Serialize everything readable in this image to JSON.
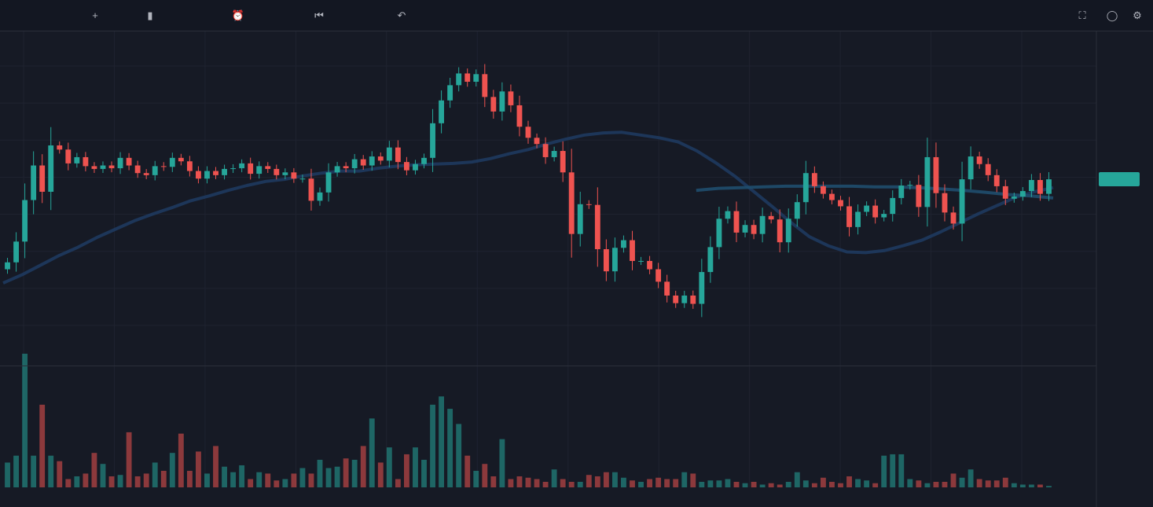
{
  "toolbar": {
    "symbol": "",
    "interval": "",
    "indicators_label": "",
    "alert_label": "",
    "replay_label": "",
    "publish_label": ""
  },
  "legend": {
    "title": "",
    "ma1_label": "",
    "ma1_value": "",
    "ma2_label": "",
    "ma2_value": "",
    "volume_label": "",
    "volume_value": ""
  },
  "colors": {
    "up": "#26a69a",
    "down": "#ef5350",
    "ma_slow": "#1e3a5f",
    "ma_fast": "#1f4e6e",
    "background": "#161a25",
    "grid": "#1f2330",
    "axis_text": "#787b86"
  },
  "chart_data": [
    {
      "type": "candlestick",
      "title": "",
      "close": [
        3.02,
        3.32,
        3.92,
        4.42,
        4.04,
        4.71,
        4.65,
        4.45,
        4.54,
        4.41,
        4.37,
        4.42,
        4.38,
        4.53,
        4.42,
        4.31,
        4.28,
        4.41,
        4.4,
        4.53,
        4.48,
        4.34,
        4.23,
        4.34,
        4.28,
        4.37,
        4.38,
        4.45,
        4.3,
        4.41,
        4.37,
        4.28,
        4.32,
        4.23,
        4.23,
        3.91,
        4.03,
        4.32,
        4.41,
        4.38,
        4.51,
        4.42,
        4.55,
        4.49,
        4.68,
        4.47,
        4.35,
        4.44,
        4.53,
        5.03,
        5.36,
        5.58,
        5.75,
        5.63,
        5.74,
        5.41,
        5.2,
        5.49,
        5.29,
        4.98,
        4.82,
        4.73,
        4.54,
        4.63,
        4.32,
        3.43,
        3.86,
        3.85,
        3.21,
        2.89,
        3.23,
        3.34,
        3.04,
        3.04,
        2.92,
        2.74,
        2.54,
        2.43,
        2.54,
        2.42,
        2.88,
        3.24,
        3.65,
        3.76,
        3.45,
        3.56,
        3.43,
        3.69,
        3.64,
        3.31,
        3.65,
        3.89,
        4.31,
        4.12,
        4.01,
        3.92,
        3.83,
        3.53,
        3.75,
        3.84,
        3.67,
        3.72,
        3.95,
        4.13,
        4.14,
        3.82,
        4.54,
        4.02,
        3.74,
        3.58,
        4.22,
        4.55,
        4.44,
        4.28,
        4.12,
        3.94,
        3.97,
        4.05,
        4.21,
        4.01,
        4.22
      ],
      "ma_slow": [
        2.72,
        2.84,
        2.98,
        3.12,
        3.24,
        3.38,
        3.5,
        3.62,
        3.72,
        3.81,
        3.91,
        3.98,
        4.06,
        4.13,
        4.19,
        4.22,
        4.27,
        4.31,
        4.34,
        4.34,
        4.38,
        4.41,
        4.43,
        4.44,
        4.45,
        4.47,
        4.52,
        4.59,
        4.65,
        4.73,
        4.8,
        4.86,
        4.89,
        4.9,
        4.86,
        4.82,
        4.76,
        4.63,
        4.46,
        4.27,
        4.05,
        3.83,
        3.6,
        3.39,
        3.26,
        3.17,
        3.16,
        3.19,
        3.26,
        3.34,
        3.46,
        3.59,
        3.72,
        3.84,
        3.96,
        4.04,
        4.1
      ],
      "ma_fast": [
        4.06,
        4.09,
        4.1,
        4.11,
        4.12,
        4.12,
        4.12,
        4.12,
        4.11,
        4.11,
        4.1,
        4.08,
        4.06,
        4.03,
        4.0,
        3.98,
        3.95
      ],
      "volume": [
        18,
        23,
        97,
        23,
        60,
        23,
        19,
        6,
        8,
        10,
        25,
        17,
        8,
        9,
        40,
        8,
        10,
        18,
        12,
        25,
        39,
        12,
        26,
        10,
        30,
        15,
        11,
        16,
        6,
        11,
        10,
        5,
        6,
        10,
        14,
        10,
        20,
        14,
        15,
        21,
        20,
        30,
        50,
        18,
        29,
        6,
        24,
        29,
        20,
        60,
        66,
        57,
        46,
        23,
        12,
        17,
        8,
        35,
        6,
        8,
        7,
        6,
        4,
        13,
        6,
        4,
        4,
        9,
        8,
        11,
        11,
        7,
        5,
        4,
        6,
        7,
        6,
        6,
        11,
        10,
        4,
        5,
        5,
        6,
        4,
        3,
        4,
        2,
        3,
        2,
        4,
        11,
        5,
        3,
        7,
        4,
        3,
        8,
        6,
        5,
        3,
        23,
        24,
        24,
        6,
        5,
        3,
        4,
        4,
        10,
        7,
        13,
        6,
        5,
        5,
        7,
        3,
        2,
        2,
        2,
        1
      ],
      "y_ticks": [
        "",
        "",
        "",
        "",
        "",
        "",
        "",
        ""
      ],
      "volume_ticks": [
        "",
        "",
        "",
        "",
        ""
      ],
      "x_ticks": [
        "",
        "",
        "",
        "",
        "",
        "",
        "",
        "",
        "",
        "",
        "",
        ""
      ],
      "grid": true
    }
  ]
}
